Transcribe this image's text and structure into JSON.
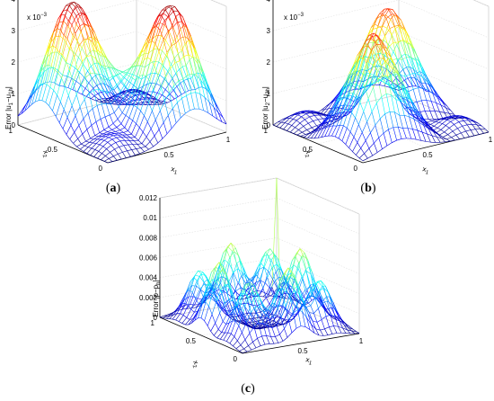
{
  "chart_data": [
    {
      "type": "surface",
      "panel": "a",
      "caption_label": "a",
      "zlabel": "Error |u₁−u₁h|",
      "zlabel_main": "Error |u",
      "zlabel_sub1": "1",
      "zlabel_mid": "−u",
      "zlabel_sub2": "1h",
      "zlabel_end": "|",
      "xlabel_main": "x",
      "xlabel_sub": "1",
      "ylabel_main": "x",
      "ylabel_sub": "2",
      "exponent_label": "x 10",
      "exponent_power": "−3",
      "xlim": [
        0,
        1
      ],
      "ylim": [
        0,
        1
      ],
      "zlim": [
        0,
        0.004
      ],
      "z_ticks": [
        "0",
        "1",
        "2",
        "3",
        "4"
      ],
      "x_ticks": [
        "0.5",
        "1"
      ],
      "y_ticks": [
        "0",
        "0.5",
        "1"
      ],
      "colormap": "jet",
      "surface": {
        "peaks": [
          {
            "x": 0.27,
            "y": 0.72,
            "z": 0.0039
          },
          {
            "x": 0.72,
            "y": 0.28,
            "z": 0.0039
          }
        ],
        "sigma": 0.17
      }
    },
    {
      "type": "surface",
      "panel": "b",
      "caption_label": "b",
      "zlabel_main": "Error |u",
      "zlabel_sub1": "2",
      "zlabel_mid": "−u",
      "zlabel_sub2": "2h",
      "zlabel_end": "|",
      "xlabel_main": "x",
      "xlabel_sub": "1",
      "ylabel_main": "x",
      "ylabel_sub": "2",
      "exponent_label": "x 10",
      "exponent_power": "−3",
      "xlim": [
        0,
        1
      ],
      "ylim": [
        0,
        1
      ],
      "zlim": [
        0,
        0.004
      ],
      "z_ticks": [
        "0",
        "1",
        "2",
        "3",
        "4"
      ],
      "x_ticks": [
        "0.5",
        "1"
      ],
      "y_ticks": [
        "0",
        "0.5",
        "1"
      ],
      "colormap": "jet",
      "surface": {
        "peaks": [
          {
            "x": 0.3,
            "y": 0.3,
            "z": 0.0034
          },
          {
            "x": 0.7,
            "y": 0.7,
            "z": 0.0034
          }
        ],
        "sigma": 0.15
      }
    },
    {
      "type": "surface",
      "panel": "c",
      "caption_label": "c",
      "zlabel_main": "Error |p−p",
      "zlabel_sub1": "h",
      "zlabel_end": "|",
      "xlabel_main": "x",
      "xlabel_sub": "1",
      "ylabel_main": "x",
      "ylabel_sub": "2",
      "xlim": [
        0,
        1
      ],
      "ylim": [
        0,
        1
      ],
      "zlim": [
        0,
        0.012
      ],
      "z_ticks": [
        "0",
        "0.002",
        "0.004",
        "0.006",
        "0.008",
        "0.01",
        "0.012"
      ],
      "x_ticks": [
        "0.5",
        "1"
      ],
      "y_ticks": [
        "0",
        "0.5",
        "1"
      ],
      "colormap": "jet",
      "surface": {
        "bumps": [
          {
            "x": 0.15,
            "y": 0.5,
            "z": 0.007
          },
          {
            "x": 0.5,
            "y": 0.15,
            "z": 0.007
          },
          {
            "x": 0.85,
            "y": 0.5,
            "z": 0.007
          },
          {
            "x": 0.5,
            "y": 0.85,
            "z": 0.007
          },
          {
            "x": 0.2,
            "y": 0.2,
            "z": 0.006
          },
          {
            "x": 0.8,
            "y": 0.8,
            "z": 0.006
          },
          {
            "x": 0.2,
            "y": 0.8,
            "z": 0.005
          },
          {
            "x": 0.8,
            "y": 0.2,
            "z": 0.005
          }
        ],
        "sigma": 0.09,
        "spike": {
          "x": 1.0,
          "y": 1.0,
          "z": 0.012
        }
      }
    }
  ]
}
